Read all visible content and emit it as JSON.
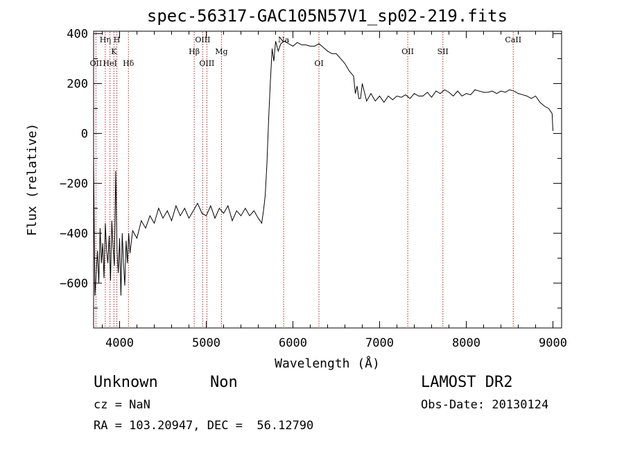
{
  "chart_data": {
    "type": "line",
    "title": "spec-56317-GAC105N57V1_sp02-219.fits",
    "xlabel": "Wavelength (Å)",
    "ylabel": "Flux (relative)",
    "xlim": [
      3700,
      9100
    ],
    "ylim": [
      -780,
      410
    ],
    "xticks": [
      4000,
      5000,
      6000,
      7000,
      8000,
      9000
    ],
    "yticks": [
      -600,
      -400,
      -200,
      0,
      200,
      400
    ],
    "series": [
      {
        "values_note": "approximate continuum trace of the spectrum",
        "x": [
          3700,
          3715,
          3730,
          3745,
          3760,
          3775,
          3790,
          3805,
          3820,
          3835,
          3850,
          3865,
          3880,
          3895,
          3910,
          3925,
          3940,
          3955,
          3970,
          3985,
          4000,
          4015,
          4030,
          4045,
          4060,
          4075,
          4090,
          4105,
          4120,
          4150,
          4200,
          4250,
          4300,
          4350,
          4400,
          4450,
          4500,
          4550,
          4600,
          4650,
          4700,
          4750,
          4800,
          4850,
          4900,
          4950,
          5000,
          5050,
          5100,
          5150,
          5200,
          5250,
          5300,
          5350,
          5400,
          5450,
          5500,
          5550,
          5600,
          5640,
          5660,
          5680,
          5700,
          5720,
          5740,
          5760,
          5780,
          5800,
          5830,
          5860,
          5900,
          5950,
          6000,
          6050,
          6100,
          6150,
          6200,
          6250,
          6300,
          6350,
          6400,
          6450,
          6500,
          6550,
          6600,
          6650,
          6700,
          6720,
          6740,
          6760,
          6780,
          6800,
          6850,
          6900,
          6950,
          7000,
          7050,
          7100,
          7150,
          7200,
          7250,
          7300,
          7350,
          7400,
          7450,
          7500,
          7550,
          7600,
          7650,
          7700,
          7750,
          7800,
          7850,
          7900,
          7950,
          8000,
          8050,
          8100,
          8150,
          8200,
          8250,
          8300,
          8350,
          8400,
          8450,
          8500,
          8550,
          8600,
          8650,
          8700,
          8750,
          8800,
          8850,
          8900,
          8950,
          8990,
          9000
        ],
        "y": [
          -100,
          -650,
          -560,
          -470,
          -600,
          -380,
          -520,
          -440,
          -580,
          -360,
          -470,
          -520,
          -410,
          -590,
          -350,
          -460,
          -530,
          -150,
          -470,
          -560,
          -420,
          -650,
          -400,
          -520,
          -610,
          -430,
          -520,
          -400,
          -480,
          -390,
          -420,
          -350,
          -380,
          -330,
          -360,
          -300,
          -340,
          -310,
          -350,
          -290,
          -330,
          -300,
          -340,
          -310,
          -280,
          -320,
          -330,
          -290,
          -340,
          -300,
          -320,
          -290,
          -350,
          -310,
          -330,
          -300,
          -330,
          -310,
          -340,
          -360,
          -310,
          -250,
          -120,
          60,
          210,
          340,
          290,
          370,
          330,
          360,
          370,
          360,
          350,
          365,
          355,
          355,
          350,
          350,
          360,
          345,
          330,
          320,
          320,
          300,
          280,
          250,
          230,
          160,
          190,
          140,
          140,
          200,
          130,
          160,
          130,
          150,
          125,
          150,
          135,
          150,
          145,
          155,
          140,
          160,
          150,
          150,
          165,
          145,
          170,
          160,
          175,
          165,
          150,
          170,
          150,
          160,
          155,
          175,
          170,
          165,
          165,
          170,
          160,
          170,
          165,
          175,
          170,
          160,
          155,
          150,
          140,
          150,
          125,
          110,
          100,
          80,
          10
        ]
      }
    ],
    "lines": [
      {
        "label": "OII",
        "x": 3727,
        "row": 2
      },
      {
        "label": "Hη",
        "x": 3835,
        "row": 0
      },
      {
        "label": "K",
        "x": 3934,
        "row": 1
      },
      {
        "label": "HeI",
        "x": 3889,
        "row": 2
      },
      {
        "label": "H",
        "x": 3968,
        "row": 0
      },
      {
        "label": "Hδ",
        "x": 4102,
        "row": 2
      },
      {
        "label": "Hβ",
        "x": 4861,
        "row": 1
      },
      {
        "label": "OIII",
        "x": 4959,
        "row": 0
      },
      {
        "label": "OIII",
        "x": 5007,
        "row": 2
      },
      {
        "label": "Mg",
        "x": 5175,
        "row": 1
      },
      {
        "label": "Na",
        "x": 5893,
        "row": 0
      },
      {
        "label": "OI",
        "x": 6300,
        "row": 2
      },
      {
        "label": "OII",
        "x": 7325,
        "row": 1
      },
      {
        "label": "SII",
        "x": 7730,
        "row": 1
      },
      {
        "label": "CaII",
        "x": 8542,
        "row": 0
      }
    ]
  },
  "footer": {
    "object_class": "Unknown",
    "subclass": "Non",
    "survey": "LAMOST DR2",
    "cz": "cz = NaN",
    "obs_date": "Obs-Date: 20130124",
    "coords": "RA = 103.20947, DEC =  56.12790"
  }
}
